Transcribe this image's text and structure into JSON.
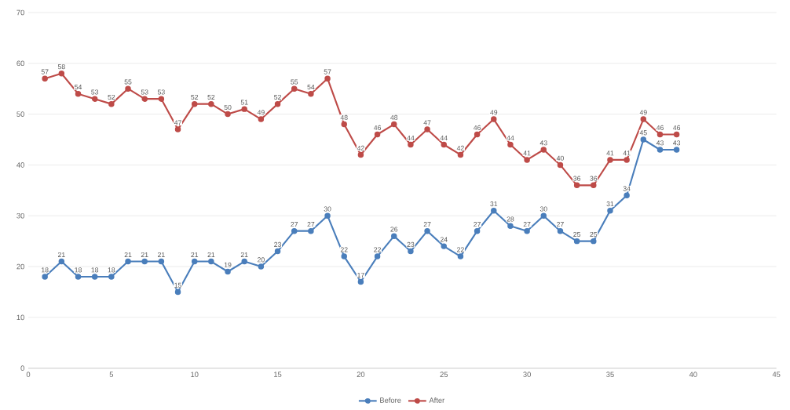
{
  "chart_data": {
    "type": "line",
    "x": [
      1,
      2,
      3,
      4,
      5,
      6,
      7,
      8,
      9,
      10,
      11,
      12,
      13,
      14,
      15,
      16,
      17,
      18,
      19,
      20,
      21,
      22,
      23,
      24,
      25,
      26,
      27,
      28,
      29,
      30,
      31,
      32,
      33,
      34,
      35,
      36,
      37,
      38,
      39
    ],
    "series": [
      {
        "name": "Before",
        "color": "#4a7ebb",
        "values": [
          18,
          21,
          18,
          18,
          18,
          21,
          21,
          21,
          15,
          21,
          21,
          19,
          21,
          20,
          23,
          27,
          27,
          30,
          22,
          17,
          22,
          26,
          23,
          27,
          24,
          22,
          27,
          31,
          28,
          27,
          30,
          27,
          25,
          25,
          31,
          34,
          45,
          43,
          43
        ]
      },
      {
        "name": "After",
        "color": "#be4b48",
        "values": [
          57,
          58,
          54,
          53,
          52,
          55,
          53,
          53,
          47,
          52,
          52,
          50,
          51,
          49,
          52,
          55,
          54,
          57,
          48,
          42,
          46,
          48,
          44,
          47,
          44,
          42,
          46,
          49,
          44,
          41,
          43,
          40,
          36,
          36,
          41,
          41,
          49,
          46,
          46
        ]
      }
    ],
    "xlim": [
      0,
      45
    ],
    "xticks": [
      0,
      5,
      10,
      15,
      20,
      25,
      30,
      35,
      40,
      45
    ],
    "ylim": [
      0,
      70
    ],
    "yticks": [
      0,
      10,
      20,
      30,
      40,
      50,
      60,
      70
    ],
    "grid": "y",
    "legend": "bottom",
    "marker": "circle",
    "line_style": "solid",
    "data_labels": true
  }
}
